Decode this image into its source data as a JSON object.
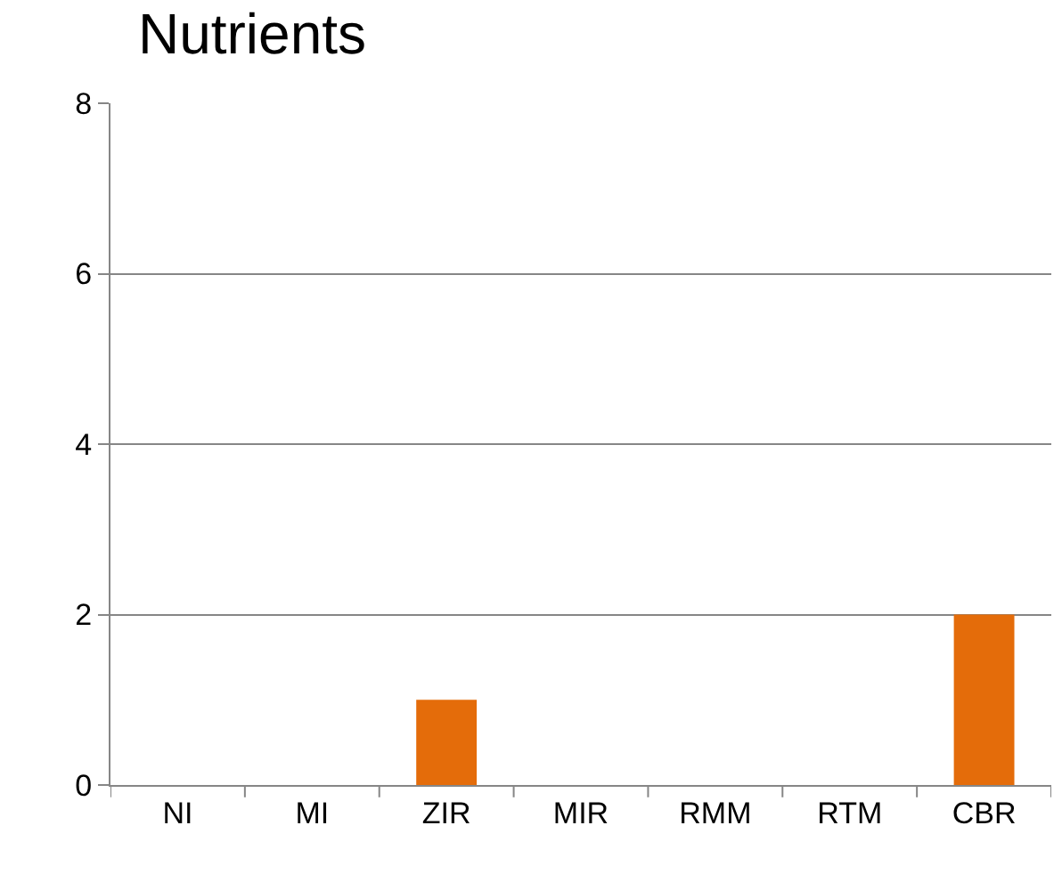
{
  "chart_data": {
    "type": "bar",
    "title": "Nutrients",
    "categories": [
      "NI",
      "MI",
      "ZIR",
      "MIR",
      "RMM",
      "RTM",
      "CBR"
    ],
    "values": [
      0,
      0,
      1,
      0,
      0,
      0,
      2
    ],
    "color": "#e46c0a",
    "ylim": [
      0,
      8
    ],
    "yticks": [
      0,
      2,
      4,
      6,
      8
    ],
    "grid": "y",
    "legend": false
  }
}
